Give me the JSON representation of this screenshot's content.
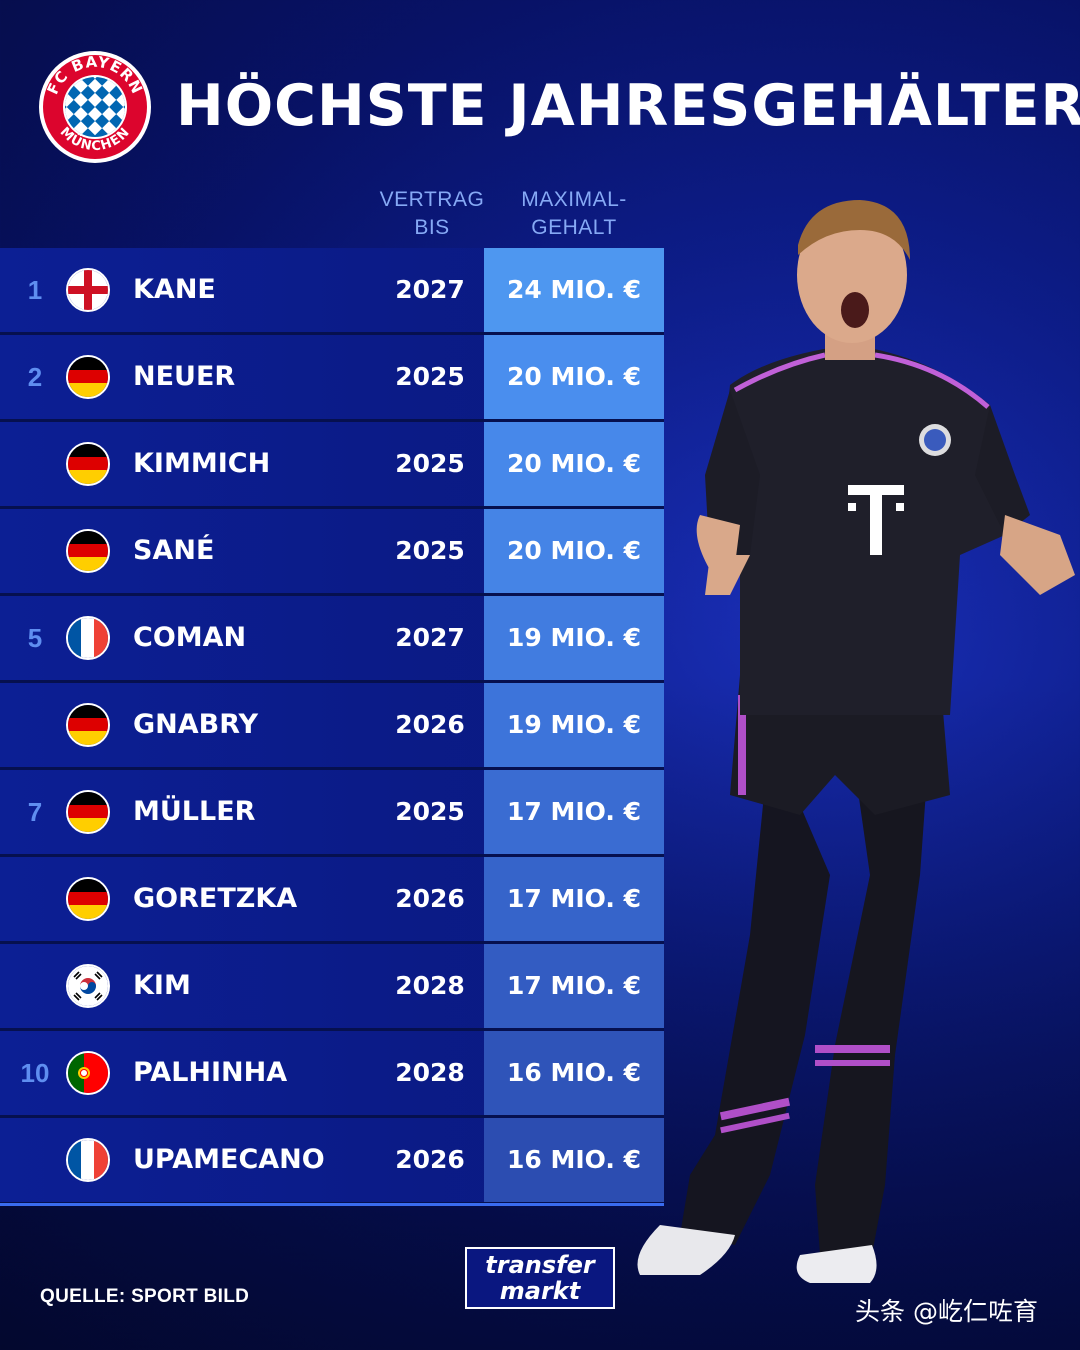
{
  "header": {
    "logo_text_top": "FC BAYERN",
    "logo_text_bottom": "MÜNCHEN",
    "title": "HÖCHSTE JAHRESGEHÄLTER"
  },
  "columns": {
    "vertrag_line1": "VERTRAG",
    "vertrag_line2": "BIS",
    "gehalt_line1": "MAXIMAL-",
    "gehalt_line2": "GEHALT"
  },
  "colors": {
    "salary_shades": [
      "#4e97f0",
      "#4a8eee",
      "#4788ea",
      "#4584e6",
      "#417ce0",
      "#3d74da",
      "#3a6cd2",
      "#3664ca",
      "#335cc2",
      "#2f54b9",
      "#2c4db1"
    ],
    "year_color": "#ffffff"
  },
  "rows": [
    {
      "rank": "1",
      "flag": "england-flag",
      "name": "KANE",
      "year": "2027",
      "salary": "24 MIO. €"
    },
    {
      "rank": "2",
      "flag": "germany-flag",
      "name": "NEUER",
      "year": "2025",
      "salary": "20 MIO. €"
    },
    {
      "rank": "",
      "flag": "germany-flag",
      "name": "KIMMICH",
      "year": "2025",
      "salary": "20 MIO. €"
    },
    {
      "rank": "",
      "flag": "germany-flag",
      "name": "SANÉ",
      "year": "2025",
      "salary": "20 MIO. €"
    },
    {
      "rank": "5",
      "flag": "france-flag",
      "name": "COMAN",
      "year": "2027",
      "salary": "19 MIO. €"
    },
    {
      "rank": "",
      "flag": "germany-flag",
      "name": "GNABRY",
      "year": "2026",
      "salary": "19 MIO. €"
    },
    {
      "rank": "7",
      "flag": "germany-flag",
      "name": "MÜLLER",
      "year": "2025",
      "salary": "17 MIO. €"
    },
    {
      "rank": "",
      "flag": "germany-flag",
      "name": "GORETZKA",
      "year": "2026",
      "salary": "17 MIO. €"
    },
    {
      "rank": "",
      "flag": "south-korea-flag",
      "name": "KIM",
      "year": "2028",
      "salary": "17 MIO. €"
    },
    {
      "rank": "10",
      "flag": "portugal-flag",
      "name": "PALHINHA",
      "year": "2028",
      "salary": "16 MIO. €"
    },
    {
      "rank": "",
      "flag": "france-flag",
      "name": "UPAMECANO",
      "year": "2026",
      "salary": "16 MIO. €"
    }
  ],
  "footer": {
    "source": "QUELLE: SPORT BILD",
    "brand_line1": "transfer",
    "brand_line2": "markt",
    "watermark": "头条 @屹仁咗育"
  },
  "player_icon": "football-player-figure"
}
